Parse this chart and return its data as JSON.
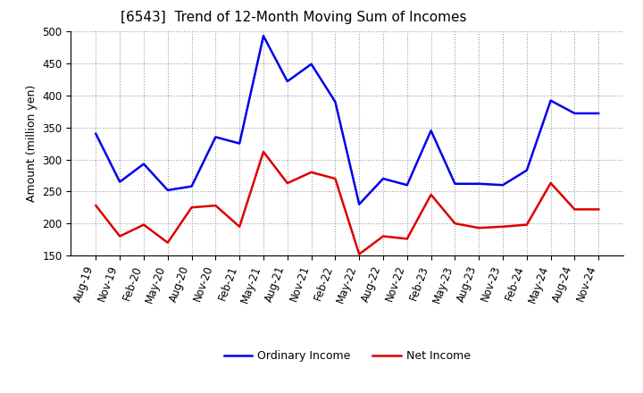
{
  "title": "[6543]  Trend of 12-Month Moving Sum of Incomes",
  "ylabel": "Amount (million yen)",
  "ylim": [
    150,
    500
  ],
  "yticks": [
    150,
    200,
    250,
    300,
    350,
    400,
    450,
    500
  ],
  "x_labels": [
    "Aug-19",
    "Nov-19",
    "Feb-20",
    "May-20",
    "Aug-20",
    "Nov-20",
    "Feb-21",
    "May-21",
    "Aug-21",
    "Nov-21",
    "Feb-22",
    "May-22",
    "Aug-22",
    "Nov-22",
    "Feb-23",
    "May-23",
    "Aug-23",
    "Nov-23",
    "Feb-24",
    "May-24",
    "Aug-24",
    "Nov-24"
  ],
  "ordinary_income": [
    340,
    265,
    293,
    252,
    258,
    335,
    325,
    493,
    422,
    449,
    390,
    230,
    270,
    260,
    345,
    262,
    262,
    260,
    283,
    392,
    372,
    372
  ],
  "net_income": [
    228,
    180,
    198,
    170,
    225,
    228,
    195,
    312,
    263,
    280,
    270,
    152,
    180,
    176,
    245,
    200,
    193,
    195,
    198,
    263,
    222,
    222
  ],
  "ordinary_income_color": "#0000ee",
  "net_income_color": "#dd0000",
  "background_color": "#ffffff",
  "grid_color": "#999999",
  "title_fontsize": 11,
  "axis_fontsize": 8.5,
  "ylabel_fontsize": 9,
  "legend_labels": [
    "Ordinary Income",
    "Net Income"
  ]
}
